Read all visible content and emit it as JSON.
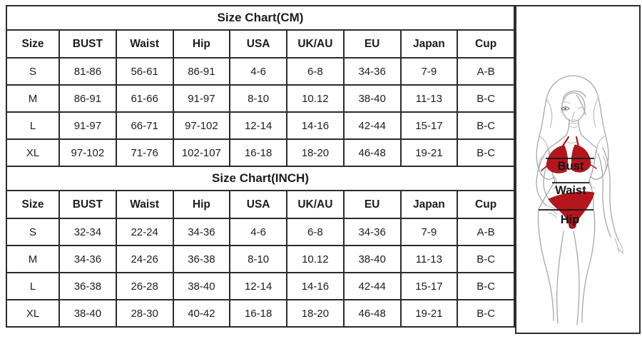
{
  "charts": [
    {
      "title": "Size Chart(CM)",
      "columns": [
        "Size",
        "BUST",
        "Waist",
        "Hip",
        "USA",
        "UK/AU",
        "EU",
        "Japan",
        "Cup"
      ],
      "rows": [
        [
          "S",
          "81-86",
          "56-61",
          "86-91",
          "4-6",
          "6-8",
          "34-36",
          "7-9",
          "A-B"
        ],
        [
          "M",
          "86-91",
          "61-66",
          "91-97",
          "8-10",
          "10.12",
          "38-40",
          "11-13",
          "B-C"
        ],
        [
          "L",
          "91-97",
          "66-71",
          "97-102",
          "12-14",
          "14-16",
          "42-44",
          "15-17",
          "B-C"
        ],
        [
          "XL",
          "97-102",
          "71-76",
          "102-107",
          "16-18",
          "18-20",
          "46-48",
          "19-21",
          "B-C"
        ]
      ]
    },
    {
      "title": "Size Chart(INCH)",
      "columns": [
        "Size",
        "BUST",
        "Waist",
        "Hip",
        "USA",
        "UK/AU",
        "EU",
        "Japan",
        "Cup"
      ],
      "rows": [
        [
          "S",
          "32-34",
          "22-24",
          "34-36",
          "4-6",
          "6-8",
          "34-36",
          "7-9",
          "A-B"
        ],
        [
          "M",
          "34-36",
          "24-26",
          "36-38",
          "8-10",
          "10.12",
          "38-40",
          "11-13",
          "B-C"
        ],
        [
          "L",
          "36-38",
          "26-28",
          "38-40",
          "12-14",
          "14-16",
          "42-44",
          "15-17",
          "B-C"
        ],
        [
          "XL",
          "38-40",
          "28-30",
          "40-42",
          "16-18",
          "18-20",
          "46-48",
          "19-21",
          "B-C"
        ]
      ]
    }
  ],
  "figure": {
    "bust_label": "Bust",
    "waist_label": "Waist",
    "hip_label": "Hip",
    "bikini_color": "#b5161b",
    "measure_line_color": "#151515",
    "sketch_line_color": "#a9a5a5"
  }
}
